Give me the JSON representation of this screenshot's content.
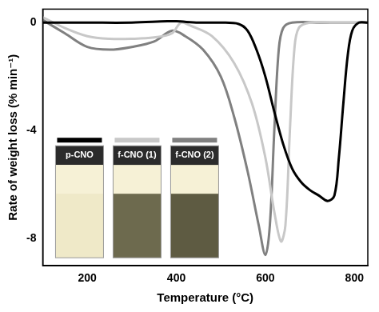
{
  "chart_data": {
    "type": "line",
    "x_label": "Temperature (°C)",
    "y_label": "Rate of weight loss (% min⁻¹)",
    "xlim": [
      100,
      830
    ],
    "xticks": [
      200,
      400,
      600,
      800
    ],
    "ylim": [
      -9,
      0.5
    ],
    "yticks": [
      -8,
      -4,
      0
    ],
    "grid": false,
    "legend": "lower left",
    "series": [
      {
        "name": "p-CNO",
        "color": "#000000",
        "x": [
          100,
          200,
          300,
          380,
          400,
          450,
          500,
          540,
          560,
          580,
          600,
          620,
          640,
          660,
          680,
          700,
          720,
          740,
          755,
          765,
          775,
          785,
          795,
          810,
          830
        ],
        "values": [
          0,
          0,
          0,
          0.05,
          0.05,
          0,
          0,
          -0.05,
          -0.3,
          -1,
          -2,
          -3.3,
          -4.5,
          -5.4,
          -5.9,
          -6.2,
          -6.4,
          -6.6,
          -6.4,
          -5,
          -3,
          -1.2,
          -0.3,
          0,
          0
        ]
      },
      {
        "name": "f-CNO (1)",
        "color": "#c8c8c8",
        "x": [
          100,
          150,
          200,
          250,
          300,
          350,
          390,
          410,
          430,
          480,
          530,
          570,
          600,
          620,
          635,
          645,
          655,
          665,
          675,
          700,
          760,
          830
        ],
        "values": [
          0.2,
          -0.2,
          -0.5,
          -0.6,
          -0.6,
          -0.55,
          -0.4,
          0,
          -0.1,
          -0.5,
          -1.5,
          -3,
          -5,
          -7,
          -8.1,
          -7.5,
          -4,
          -1,
          -0.2,
          0,
          0,
          0
        ]
      },
      {
        "name": "f-CNO (2)",
        "color": "#808080",
        "x": [
          100,
          150,
          200,
          250,
          300,
          350,
          390,
          420,
          460,
          500,
          530,
          560,
          585,
          600,
          610,
          620,
          630,
          640,
          660,
          730,
          830
        ],
        "values": [
          0.1,
          -0.4,
          -0.9,
          -1,
          -0.9,
          -0.7,
          -0.3,
          -0.5,
          -1,
          -2,
          -3.5,
          -5.5,
          -7.5,
          -8.6,
          -7.5,
          -4,
          -1,
          -0.2,
          0,
          0,
          0
        ]
      }
    ]
  }
}
